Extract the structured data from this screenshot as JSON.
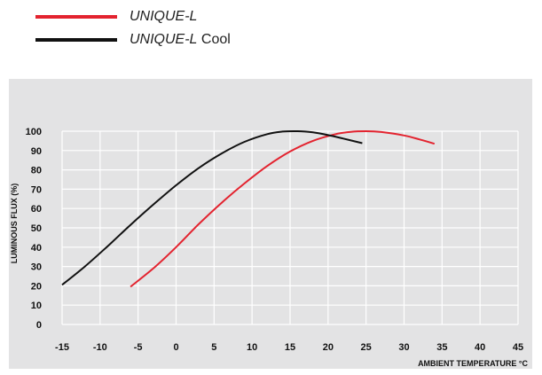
{
  "legend": [
    {
      "name_italic": "UNIQUE-L",
      "name_rest": "",
      "color": "#e3232f"
    },
    {
      "name_italic": "UNIQUE-L",
      "name_rest": " Cool",
      "color": "#111111"
    }
  ],
  "chart_data": {
    "type": "line",
    "title": "",
    "xlabel": "AMBIENT TEMPERATURE °C",
    "ylabel": "LUMINOUS FLUX (%)",
    "xlim": [
      -15,
      45
    ],
    "ylim": [
      0,
      100
    ],
    "xticks": [
      -15,
      -10,
      -5,
      0,
      5,
      10,
      15,
      20,
      25,
      30,
      35,
      40,
      45
    ],
    "yticks": [
      0,
      10,
      20,
      30,
      40,
      50,
      60,
      70,
      80,
      90,
      100
    ],
    "grid": true,
    "legend_position": "top-left",
    "series": [
      {
        "name": "UNIQUE-L",
        "color": "#e3232f",
        "x": [
          -6,
          -3,
          0,
          3,
          6,
          9,
          12,
          15,
          18,
          21,
          23,
          25,
          27,
          30,
          32,
          34
        ],
        "y": [
          19.5,
          29,
          40,
          52,
          63,
          73,
          82,
          89.5,
          95,
          98.5,
          99.7,
          100,
          99.6,
          97.8,
          95.8,
          93.5
        ]
      },
      {
        "name": "UNIQUE-L Cool",
        "color": "#111111",
        "x": [
          -15,
          -12,
          -9,
          -6,
          -3,
          0,
          3,
          6,
          9,
          12,
          14,
          16,
          18,
          20,
          22,
          24.5
        ],
        "y": [
          20.5,
          30,
          40.5,
          51.5,
          62,
          72,
          81,
          88.5,
          94.5,
          98.5,
          99.8,
          100,
          99.4,
          98,
          96.2,
          93.8
        ]
      }
    ]
  }
}
